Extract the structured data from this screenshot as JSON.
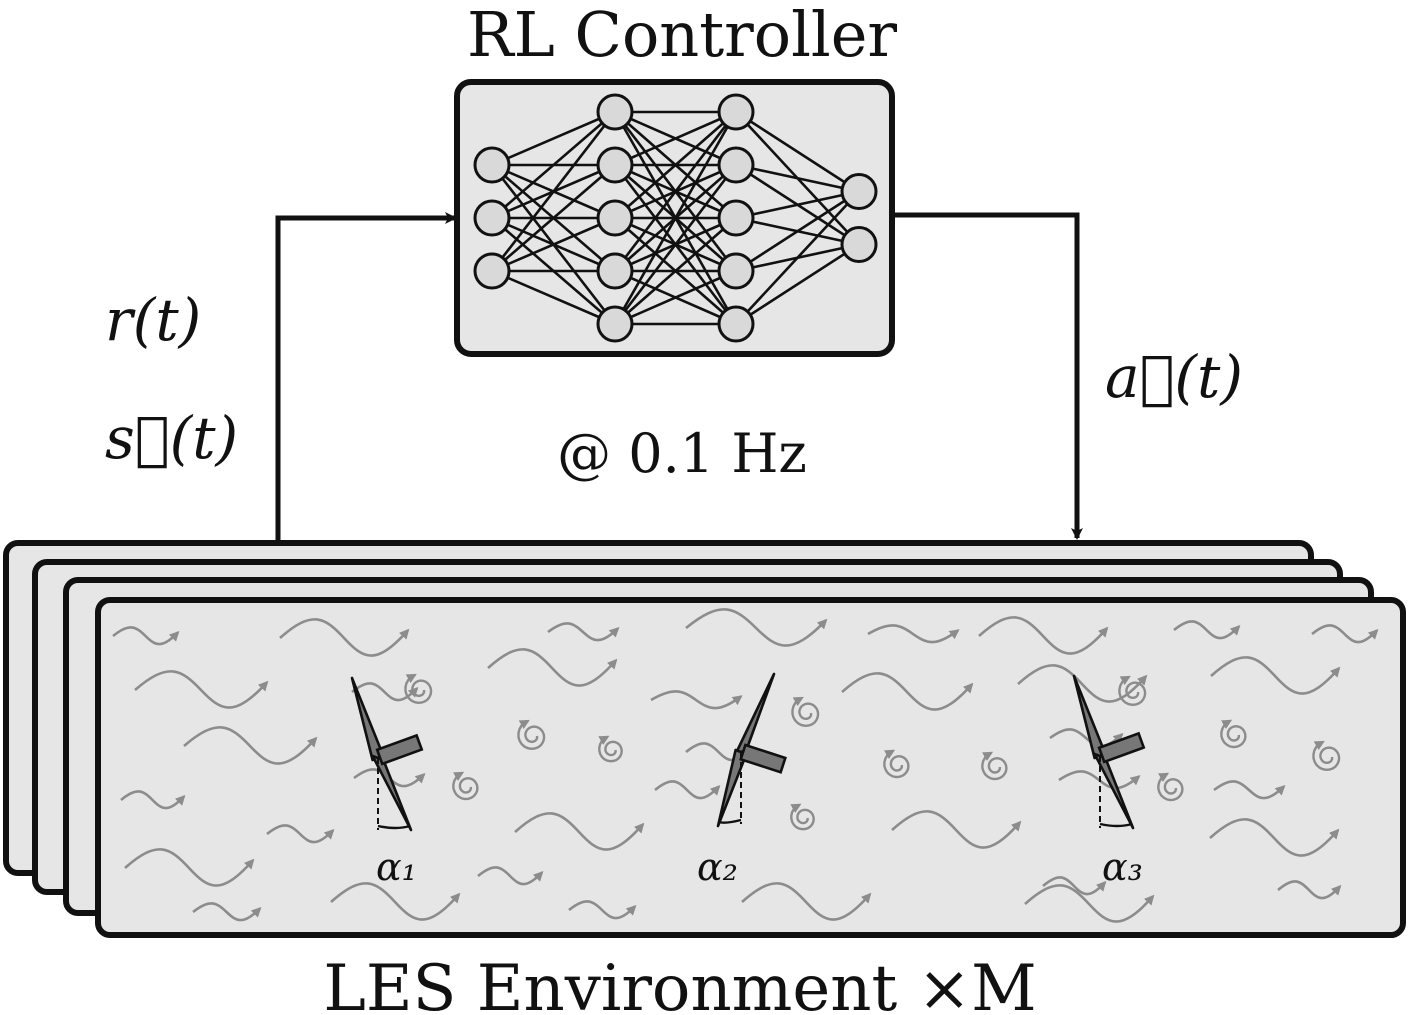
{
  "diagram": {
    "controller_title": "RL Controller",
    "frequency": "@ 0.1 Hz",
    "environment_caption": "LES Environment ×M",
    "input_signals": {
      "reward": "r(t)",
      "state": "s⃗(t)"
    },
    "output_signal": "a⃗(t)",
    "network_layers": [
      3,
      5,
      5,
      2
    ],
    "environment_copies": 4,
    "turbines": [
      {
        "label": "α₁",
        "yaw": "clockwise"
      },
      {
        "label": "α₂",
        "yaw": "counter-clockwise"
      },
      {
        "label": "α₃",
        "yaw": "clockwise"
      }
    ]
  }
}
